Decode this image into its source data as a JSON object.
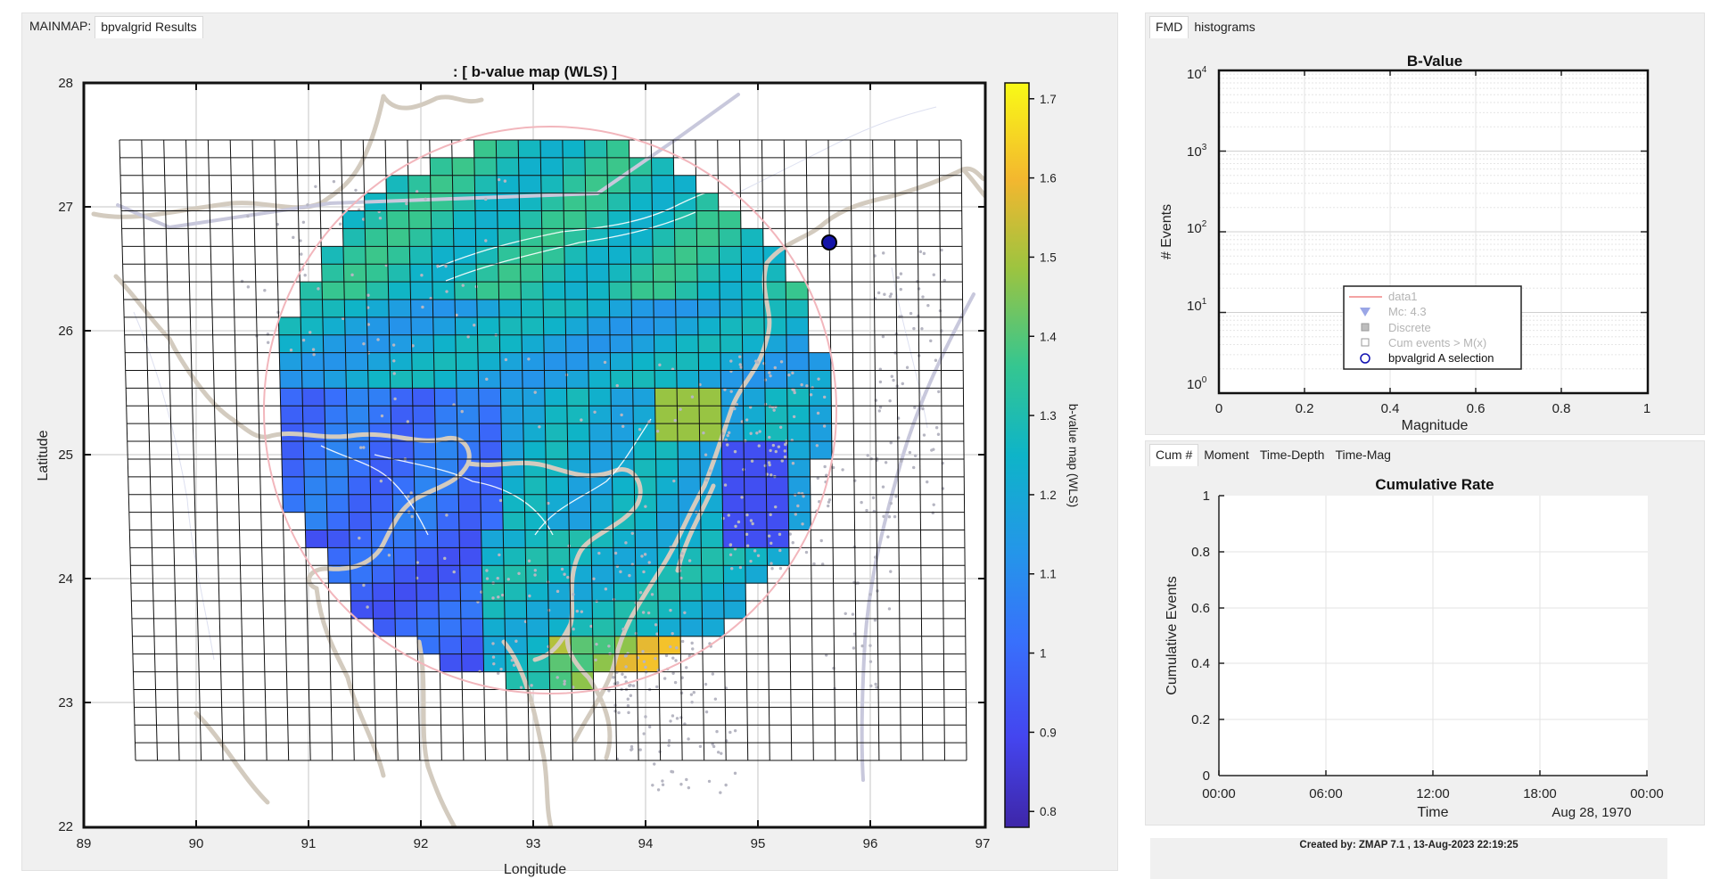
{
  "map_panel": {
    "tab_prefix": "MAINMAP:",
    "tab": "bpvalgrid Results",
    "title": ": [ b-value map (WLS) ]",
    "xlabel": "Longitude",
    "ylabel": "Latitude",
    "x_ticks": [
      "89",
      "90",
      "91",
      "92",
      "93",
      "94",
      "95",
      "96",
      "97"
    ],
    "y_ticks": [
      "28",
      "27",
      "26",
      "25",
      "24",
      "23",
      "22"
    ],
    "colorbar_label": "b-value map (WLS)",
    "colorbar_ticks": [
      "1.7",
      "1.6",
      "1.5",
      "1.4",
      "1.3",
      "1.2",
      "1.1",
      "1",
      "0.9",
      "0.8"
    ],
    "colorbar_range": [
      0.78,
      1.72
    ]
  },
  "fmd_panel": {
    "tabs": [
      "FMD",
      "histograms"
    ],
    "active_tab": "FMD",
    "title": "B-Value",
    "xlabel": "Magnitude",
    "ylabel": "# Events",
    "x_ticks": [
      "0",
      "0.2",
      "0.4",
      "0.6",
      "0.8",
      "1"
    ],
    "y_ticks": [
      "10",
      "10",
      "10",
      "10",
      "10"
    ],
    "y_exponents": [
      "4",
      "3",
      "2",
      "1",
      "0"
    ],
    "legend": [
      {
        "label": "data1",
        "icon": "line",
        "color": "#f4a3a3"
      },
      {
        "label": "Mc: 4.3",
        "icon": "triangle-down",
        "color": "#9aa6e6"
      },
      {
        "label": "Discrete",
        "icon": "square-filled",
        "color": "#bdbdbd"
      },
      {
        "label": "Cum events > M(x)",
        "icon": "square-open",
        "color": "#9a9a9a"
      },
      {
        "label": "bpvalgrid A selection",
        "icon": "circle-open",
        "color": "#1010b0"
      }
    ]
  },
  "cum_panel": {
    "tabs": [
      "Cum #",
      "Moment",
      "Time-Depth",
      "Time-Mag"
    ],
    "active_tab": "Cum #",
    "title": "Cumulative Rate",
    "xlabel": "Time",
    "date_label": "Aug 28, 1970",
    "ylabel": "Cumulative Events",
    "x_ticks": [
      "00:00",
      "06:00",
      "12:00",
      "18:00",
      "00:00"
    ],
    "y_ticks": [
      "1",
      "0.8",
      "0.6",
      "0.4",
      "0.2",
      "0"
    ]
  },
  "footer": {
    "text": "Created by: ZMAP 7.1 , 13-Aug-2023 22:19:25"
  },
  "colors": {
    "panel_bg": "#f0f0f0",
    "selection_circle": "#f2b6bc",
    "marker": "#1414a8"
  }
}
